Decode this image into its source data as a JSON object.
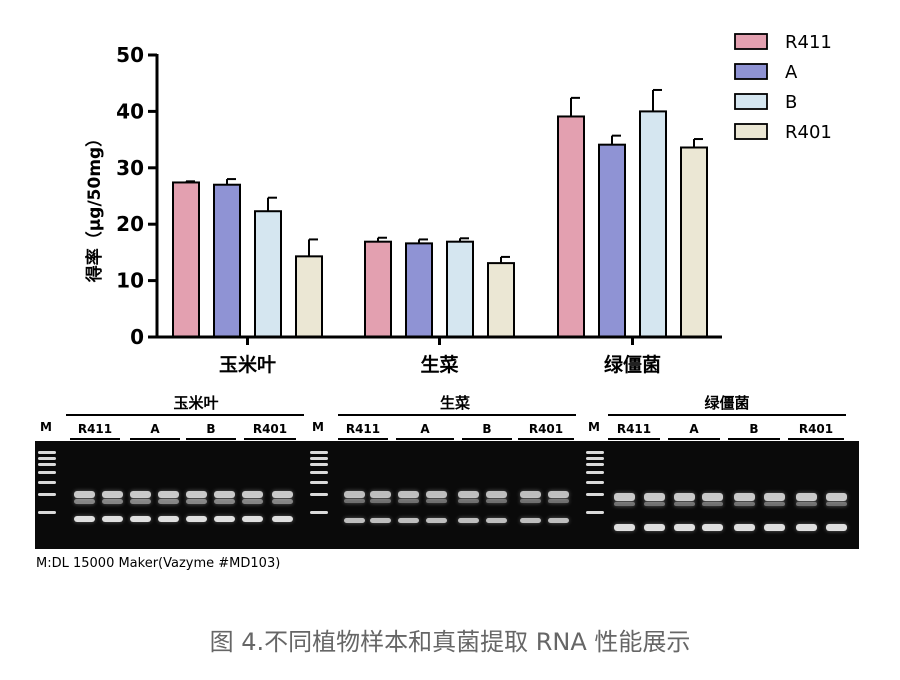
{
  "chart_data": {
    "type": "bar",
    "ylabel": "得率（μg/50mg）",
    "ylim": [
      0,
      50
    ],
    "yticks": [
      0,
      10,
      20,
      30,
      40,
      50
    ],
    "categories": [
      "玉米叶",
      "生菜",
      "绿僵菌"
    ],
    "series": [
      {
        "name": "R411",
        "color": "#e3a0b0",
        "values": [
          27.4,
          16.9,
          39.1
        ],
        "errors": [
          0.2,
          0.7,
          3.3
        ]
      },
      {
        "name": "A",
        "color": "#8f93d4",
        "values": [
          27.0,
          16.6,
          34.1
        ],
        "errors": [
          1.0,
          0.7,
          1.6
        ]
      },
      {
        "name": "B",
        "color": "#d5e6f0",
        "values": [
          22.3,
          16.9,
          40.0
        ],
        "errors": [
          2.4,
          0.6,
          3.8
        ]
      },
      {
        "name": "R401",
        "color": "#ebe7d4",
        "values": [
          14.3,
          13.1,
          33.6
        ],
        "errors": [
          3.0,
          1.1,
          1.5
        ]
      }
    ],
    "legend_position": "top-right",
    "grid": false
  },
  "gel": {
    "marker_label": "M",
    "groups": [
      {
        "title": "玉米叶",
        "lanes": [
          "R411",
          "A",
          "B",
          "R401"
        ]
      },
      {
        "title": "生菜",
        "lanes": [
          "R411",
          "A",
          "B",
          "R401"
        ]
      },
      {
        "title": "绿僵菌",
        "lanes": [
          "R411",
          "A",
          "B",
          "R401"
        ]
      }
    ],
    "marker_note": "M:DL 15000 Maker(Vazyme #MD103)"
  },
  "caption": "图 4.不同植物样本和真菌提取 RNA 性能展示"
}
